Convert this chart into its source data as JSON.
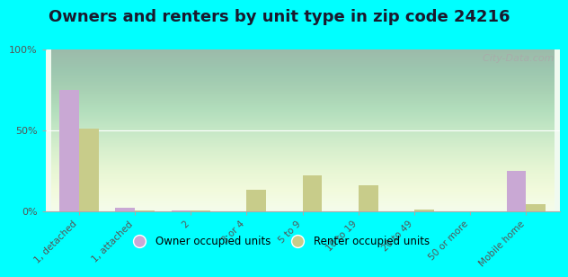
{
  "title": "Owners and renters by unit type in zip code 24216",
  "categories": [
    "1, detached",
    "1, attached",
    "2",
    "3 or 4",
    "5 to 9",
    "10 to 19",
    "20 to 49",
    "50 or more",
    "Mobile home"
  ],
  "owner_values": [
    75,
    2,
    0.5,
    0,
    0,
    0,
    0,
    0,
    25
  ],
  "renter_values": [
    51,
    0.5,
    0.5,
    13,
    22,
    16,
    1,
    0,
    4
  ],
  "owner_color": "#c9a8d4",
  "renter_color": "#c8cc8a",
  "background_color": "#00ffff",
  "ylim": [
    0,
    100
  ],
  "yticks": [
    0,
    50,
    100
  ],
  "ytick_labels": [
    "0%",
    "50%",
    "100%"
  ],
  "watermark": "  City-Data.com",
  "legend_owner": "Owner occupied units",
  "legend_renter": "Renter occupied units",
  "title_fontsize": 13,
  "bar_width": 0.35
}
